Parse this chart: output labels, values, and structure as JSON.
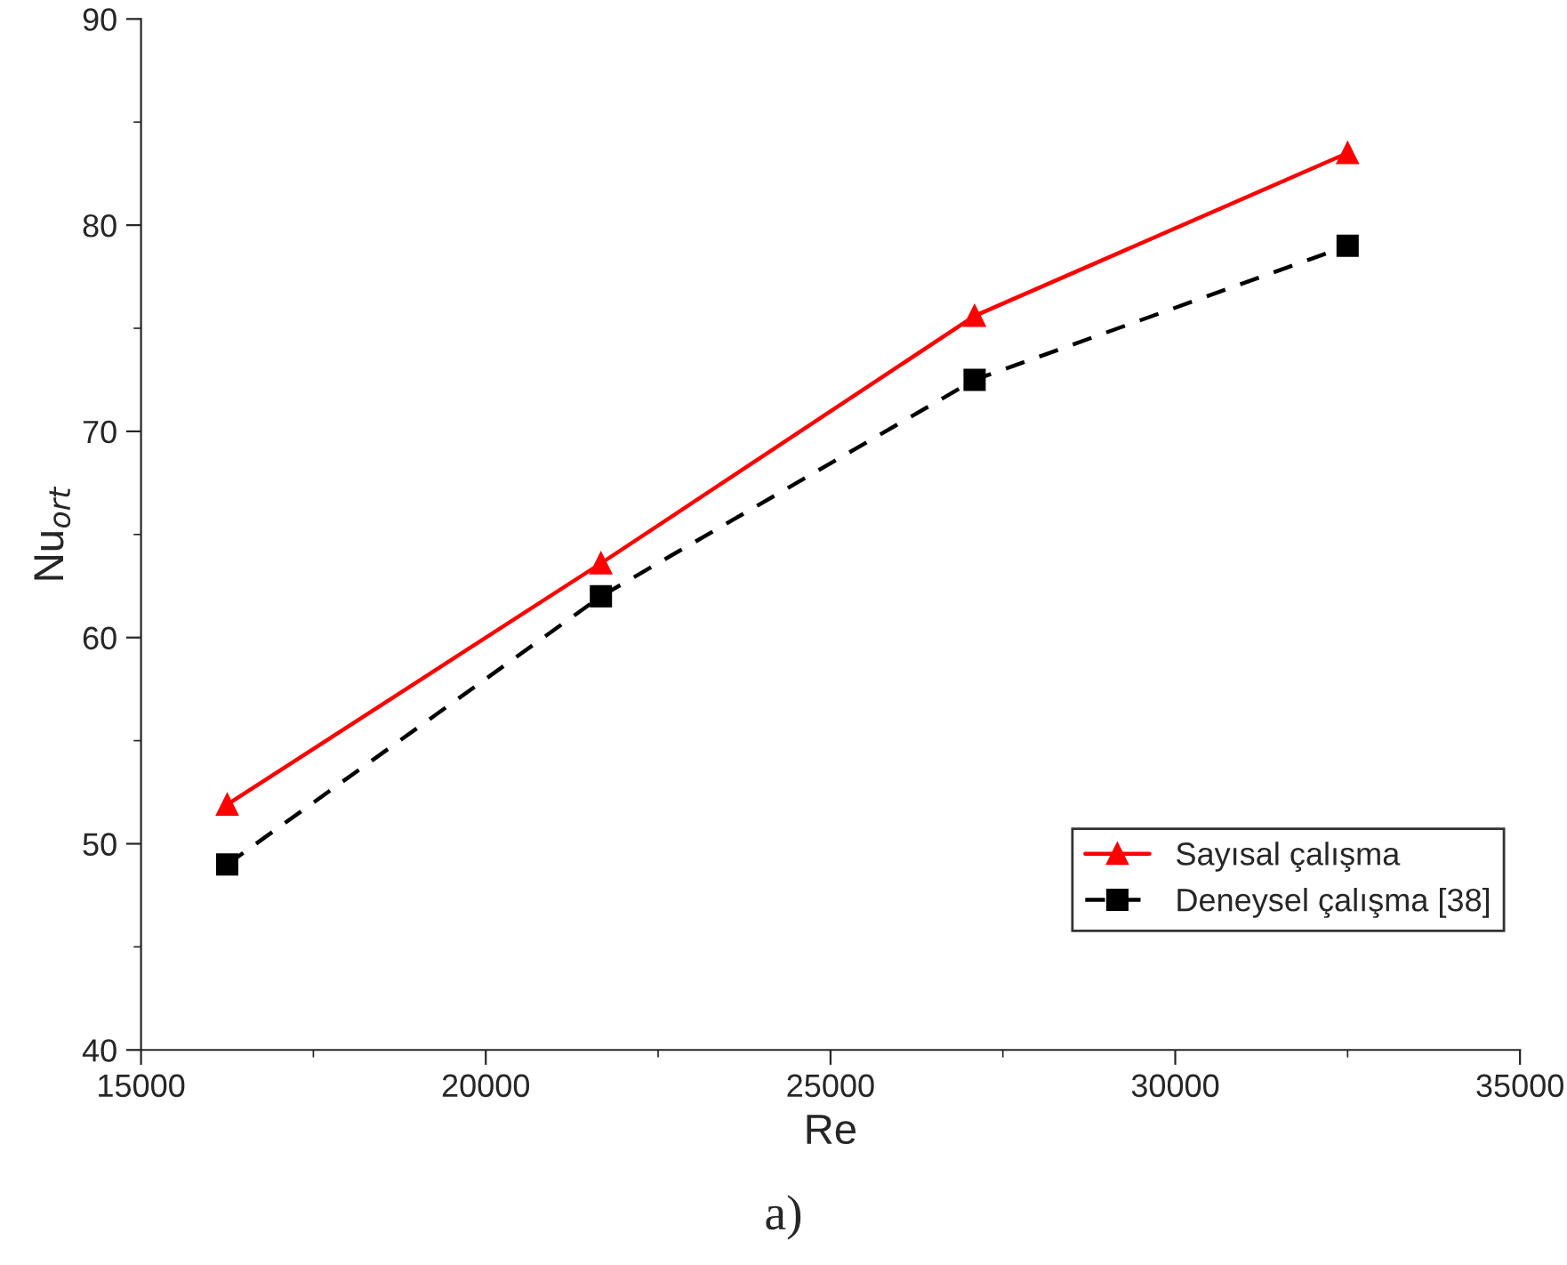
{
  "chart_data": {
    "type": "line",
    "xlabel": "Re",
    "ylabel": "Nu$_{ort}$",
    "x": [
      16250,
      21670,
      27090,
      32500
    ],
    "series": [
      {
        "name": "Sayısal çalışma",
        "color": "#ff0000",
        "values": [
          51.9,
          63.6,
          75.6,
          83.5
        ],
        "marker": "triangle",
        "line_style": "solid"
      },
      {
        "name": "Deneysel çalışma [38]",
        "color": "#000000",
        "values": [
          49.0,
          62.0,
          72.5,
          79.0
        ],
        "marker": "square",
        "line_style": "dashed"
      }
    ],
    "xlim": [
      15000,
      35000
    ],
    "xticks": [
      15000,
      20000,
      25000,
      30000,
      35000
    ],
    "ylim": [
      40,
      90
    ],
    "yticks": [
      40,
      50,
      60,
      70,
      80,
      90
    ],
    "grid": false,
    "legend": "bottom right",
    "annotations": [
      "a)"
    ]
  }
}
